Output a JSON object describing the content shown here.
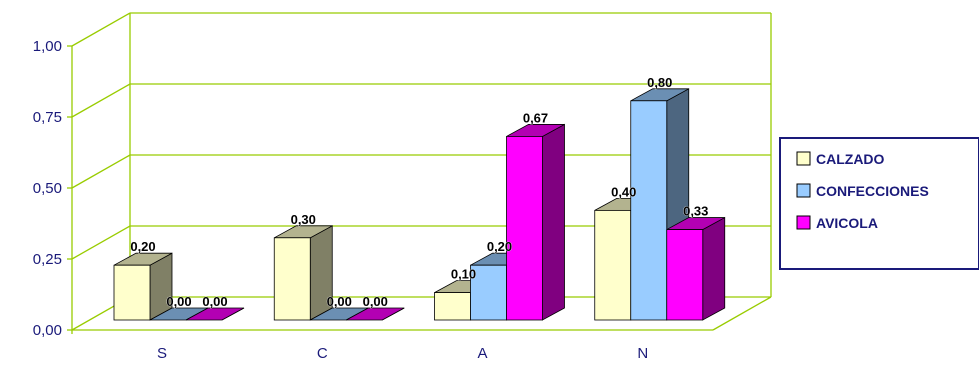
{
  "chart_data": {
    "type": "bar",
    "categories": [
      "S",
      "C",
      "A",
      "N"
    ],
    "series": [
      {
        "name": "CALZADO",
        "values": [
          0.2,
          0.3,
          0.1,
          0.4
        ],
        "labels": [
          "0,20",
          "0,30",
          "0,10",
          "0,40"
        ],
        "color": "#ffffcc"
      },
      {
        "name": "CONFECCIONES",
        "values": [
          0.0,
          0.0,
          0.2,
          0.8
        ],
        "labels": [
          "0,00",
          "0,00",
          "0,20",
          "0,80"
        ],
        "color": "#99ccff"
      },
      {
        "name": "AVICOLA",
        "values": [
          0.0,
          0.0,
          0.67,
          0.33
        ],
        "labels": [
          "0,00",
          "0,00",
          "0,67",
          "0,33"
        ],
        "color": "#ff00ff"
      }
    ],
    "ylim": [
      0,
      1
    ],
    "yticks": [
      "0,00",
      "0,25",
      "0,50",
      "0,75",
      "1,00"
    ],
    "grid": true,
    "legend": "right",
    "grid_color": "#99cc00",
    "title": "",
    "xlabel": "",
    "ylabel": ""
  }
}
